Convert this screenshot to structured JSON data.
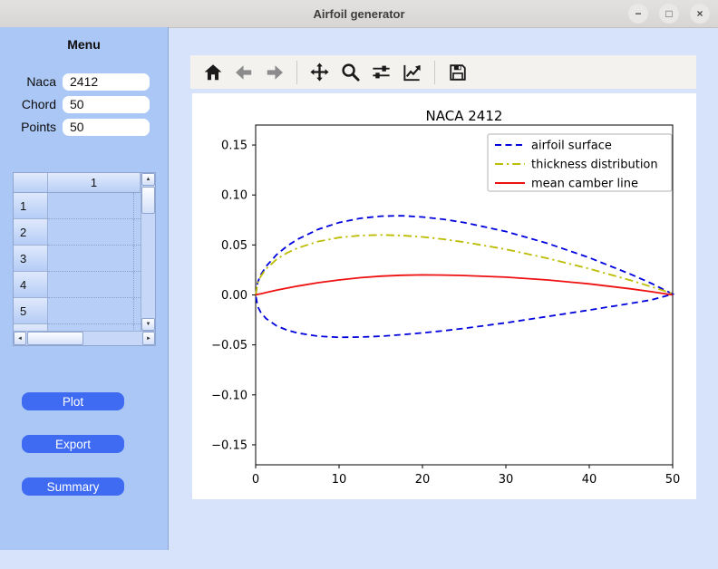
{
  "window": {
    "title": "Airfoil generator",
    "controls": {
      "minimize": "−",
      "maximize": "□",
      "close": "×"
    }
  },
  "sidebar": {
    "title": "Menu",
    "fields": [
      {
        "label": "Naca",
        "value": "2412"
      },
      {
        "label": "Chord",
        "value": "50"
      },
      {
        "label": "Points",
        "value": "50"
      }
    ],
    "table": {
      "column_headers": [
        "1"
      ],
      "row_headers": [
        "1",
        "2",
        "3",
        "4",
        "5"
      ],
      "cells": [
        "",
        "",
        "",
        "",
        ""
      ]
    },
    "buttons": [
      {
        "label": "Plot"
      },
      {
        "label": "Export"
      },
      {
        "label": "Summary"
      }
    ]
  },
  "toolbar": {
    "icons": [
      "home",
      "back",
      "forward",
      "pan",
      "zoom",
      "subplots",
      "customize",
      "save"
    ]
  },
  "chart_data": {
    "type": "line",
    "title": "NACA 2412",
    "xlabel": "",
    "ylabel": "",
    "xlim": [
      0,
      50
    ],
    "ylim": [
      -0.17,
      0.17
    ],
    "xticks": [
      0,
      10,
      20,
      30,
      40,
      50
    ],
    "xtick_labels": [
      "0",
      "10",
      "20",
      "30",
      "40",
      "50"
    ],
    "yticks": [
      0.15,
      0.1,
      0.05,
      0.0,
      -0.05,
      -0.1,
      -0.15
    ],
    "ytick_labels": [
      "0.15",
      "0.10",
      "0.05",
      "0.00",
      "−0.05",
      "−0.10",
      "−0.15"
    ],
    "grid": false,
    "legend_position": "upper right",
    "series": [
      {
        "name": "airfoil surface",
        "color": "#0000dd",
        "style": "dashed",
        "x": [
          0,
          0.25,
          0.625,
          1.25,
          2.5,
          3.75,
          5,
          7.5,
          10,
          12.5,
          15,
          17.5,
          20,
          22.5,
          25,
          30,
          35,
          40,
          45,
          47.5,
          50,
          47.5,
          45,
          40,
          35,
          30,
          25,
          22.5,
          20,
          17.5,
          15,
          12.5,
          10,
          7.5,
          5,
          3.75,
          2.5,
          1.25,
          0.625,
          0.25,
          0
        ],
        "y": [
          0,
          0.0127,
          0.0202,
          0.0286,
          0.0402,
          0.0488,
          0.0556,
          0.0656,
          0.0724,
          0.0766,
          0.0788,
          0.0792,
          0.078,
          0.0757,
          0.0724,
          0.0635,
          0.0516,
          0.0373,
          0.0206,
          0.0113,
          0.0008,
          -0.0049,
          -0.0084,
          -0.0151,
          -0.0216,
          -0.0279,
          -0.0335,
          -0.0359,
          -0.038,
          -0.0398,
          -0.0413,
          -0.0422,
          -0.0424,
          -0.0413,
          -0.0381,
          -0.0352,
          -0.0309,
          -0.0237,
          -0.0177,
          -0.0117,
          0
        ]
      },
      {
        "name": "thickness distribution",
        "color": "#bcbc00",
        "style": "dashdot",
        "x": [
          0,
          0.25,
          0.625,
          1.25,
          2.5,
          3.75,
          5,
          7.5,
          10,
          12.5,
          15,
          17.5,
          20,
          22.5,
          25,
          30,
          35,
          40,
          45,
          47.5,
          50
        ],
        "y": [
          0,
          0.0122,
          0.0189,
          0.0261,
          0.0355,
          0.042,
          0.0468,
          0.0535,
          0.0574,
          0.0594,
          0.06,
          0.0595,
          0.058,
          0.0558,
          0.0529,
          0.0457,
          0.0366,
          0.0262,
          0.0145,
          0.0081,
          0.0013
        ]
      },
      {
        "name": "mean camber line",
        "color": "#ee1111",
        "style": "solid",
        "x": [
          0,
          0.25,
          0.625,
          1.25,
          2.5,
          3.75,
          5,
          7.5,
          10,
          12.5,
          15,
          17.5,
          20,
          22.5,
          25,
          30,
          35,
          40,
          45,
          47.5,
          50
        ],
        "y": [
          0,
          0.0005,
          0.0012,
          0.0024,
          0.0047,
          0.0068,
          0.0088,
          0.0122,
          0.015,
          0.0172,
          0.0188,
          0.0197,
          0.02,
          0.0199,
          0.0194,
          0.0178,
          0.015,
          0.0111,
          0.0061,
          0.0032,
          0
        ]
      }
    ],
    "colors": {
      "accent_button": "#3e6bf2",
      "sidebar_bg": "#abc7f6",
      "main_bg": "#d7e3fb"
    }
  }
}
